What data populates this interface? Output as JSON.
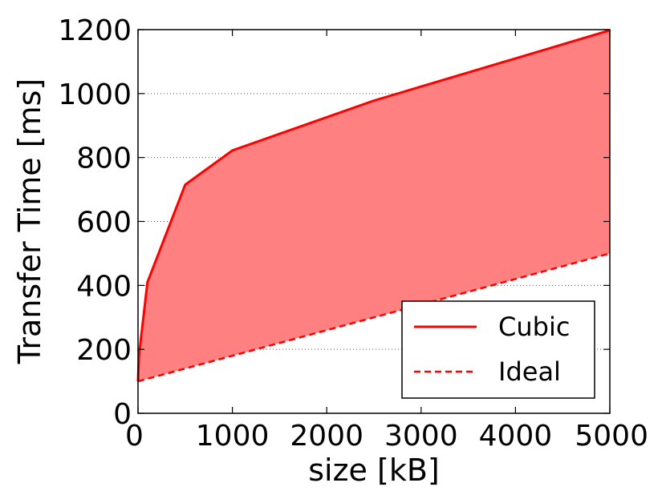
{
  "chart_data": {
    "type": "area",
    "xlabel": "size [kB]",
    "ylabel": "Transfer Time [ms]",
    "xlim": [
      0,
      5000
    ],
    "ylim": [
      0,
      1200
    ],
    "xticks": [
      "0",
      "1000",
      "2000",
      "3000",
      "4000",
      "5000"
    ],
    "yticks": [
      "0",
      "200",
      "400",
      "600",
      "800",
      "1000",
      "1200"
    ],
    "grid": "horizontal dotted",
    "legend_position": "lower-right",
    "fill_between": true,
    "fill_color": "#ff8080",
    "series": [
      {
        "name": "Cubic",
        "style": "solid",
        "color": "#ff0000",
        "points": [
          [
            0,
            100
          ],
          [
            10,
            180
          ],
          [
            100,
            410
          ],
          [
            500,
            715
          ],
          [
            1000,
            822
          ],
          [
            2500,
            978
          ],
          [
            5000,
            1198
          ]
        ]
      },
      {
        "name": "Ideal",
        "style": "dashed",
        "color": "#ff0000",
        "points": [
          [
            0,
            100
          ],
          [
            5000,
            500
          ]
        ]
      }
    ]
  }
}
